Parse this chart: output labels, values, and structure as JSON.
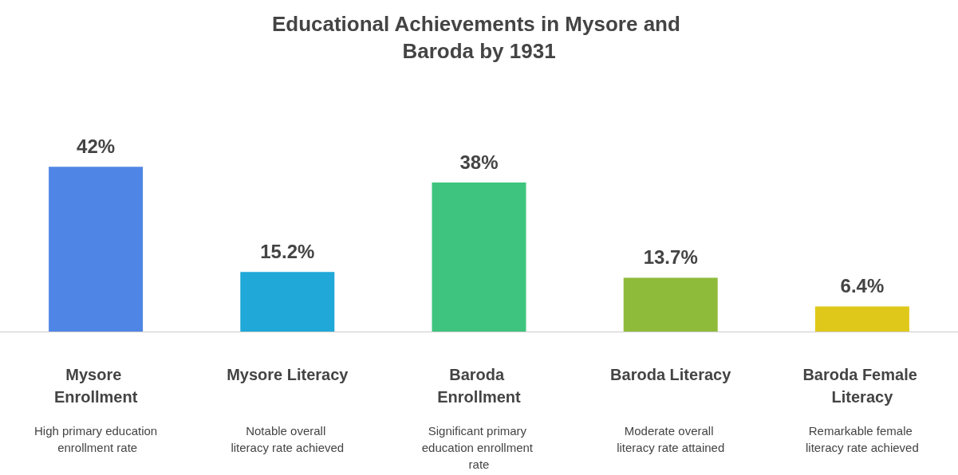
{
  "chart_data": {
    "type": "bar",
    "title": "Educational Achievements in Mysore and Baroda by 1931",
    "categories": [
      "Mysore Enrollment",
      "Mysore Literacy",
      "Baroda Enrollment",
      "Baroda Literacy",
      "Baroda Female Literacy"
    ],
    "values": [
      42,
      15.2,
      38,
      13.7,
      6.4
    ],
    "colors": [
      "#4f86e6",
      "#1fa8d8",
      "#3ec47e",
      "#8fbb3a",
      "#e0c81a"
    ],
    "value_labels": [
      "42%",
      "15.2%",
      "38%",
      "13.7%",
      "6.4%"
    ],
    "annotations": [
      "High primary education enrollment rate",
      "Notable overall literacy rate achieved",
      "Significant primary education enrollment rate",
      "Moderate overall literacy rate attained",
      "Remarkable female literacy rate achieved"
    ],
    "tick_labels": "x"
  }
}
